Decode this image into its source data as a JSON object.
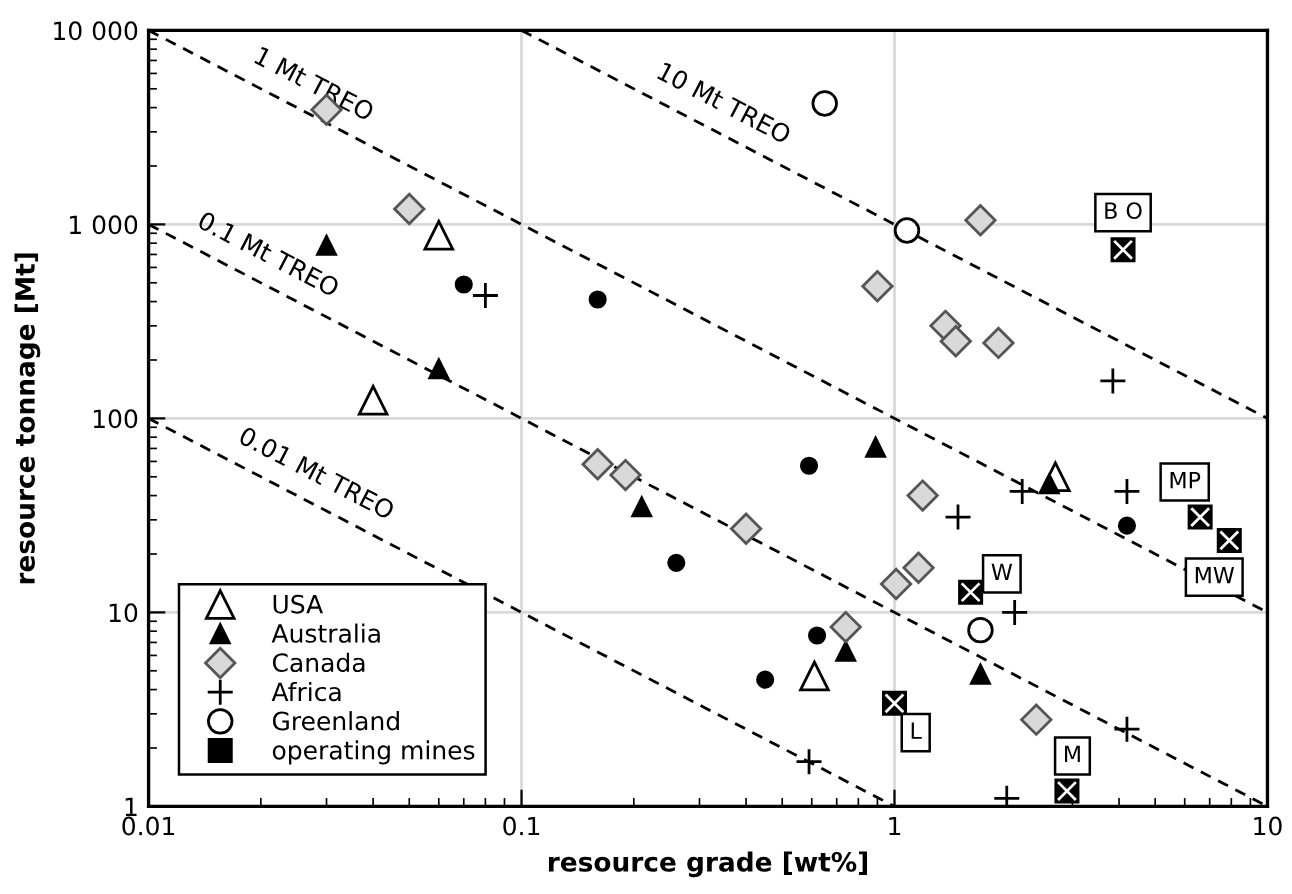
{
  "chart_data": {
    "type": "scatter",
    "xlabel": "resource grade [wt%]",
    "ylabel": "resource tonnage [Mt]",
    "log": "xy",
    "grid": true,
    "legend": "bottom left",
    "xlim": [
      0.01,
      10
    ],
    "xticks": [
      0.01,
      0.1,
      1,
      10
    ],
    "ylim": [
      1,
      10000
    ],
    "yticks": [
      1,
      10,
      100,
      {
        "value": 1000,
        "label": "1 000"
      },
      {
        "value": 10000,
        "label": "10 000"
      }
    ],
    "series": [
      {
        "name": "USA",
        "marker": "triangle",
        "color": "#ffffff",
        "x": [
          0.06,
          0.04,
          2.7,
          0.61
        ],
        "values": [
          880,
          124,
          50,
          4.7
        ]
      },
      {
        "name": "Australia",
        "marker": "triangle",
        "color": "#000000",
        "x": [
          0.03,
          0.06,
          0.89,
          0.21,
          2.6,
          0.74,
          1.7
        ],
        "values": [
          780,
          180,
          71,
          35,
          46,
          6.3,
          4.8
        ]
      },
      {
        "name": "Canada",
        "marker": "diamond",
        "color": "#d9d9d9",
        "x": [
          0.03,
          0.05,
          1.7,
          0.9,
          1.37,
          1.46,
          1.9,
          0.16,
          0.19,
          0.4,
          1.19,
          1.16,
          1.01,
          0.74,
          2.4
        ],
        "values": [
          3900,
          1200,
          1050,
          480,
          300,
          250,
          245,
          58,
          51,
          27,
          40,
          17,
          14,
          8.4,
          2.8
        ]
      },
      {
        "name": "Africa",
        "marker": "cross",
        "color": "#000000",
        "x": [
          0.08,
          3.85,
          2.2,
          4.2,
          1.48,
          2.1,
          4.2,
          0.59,
          2.0
        ],
        "values": [
          430,
          156,
          42,
          42,
          31,
          10,
          2.5,
          1.7,
          1.1
        ]
      },
      {
        "name": "Greenland",
        "marker": "circle",
        "color": "#ffffff",
        "x": [
          0.65,
          1.08,
          1.7
        ],
        "values": [
          4200,
          930,
          8.1
        ]
      },
      {
        "name": "operating mines",
        "marker": "square",
        "color": "#000000",
        "x": [
          4.1,
          6.6,
          7.9,
          1.6,
          1.0,
          2.9
        ],
        "values": [
          740,
          31,
          23.5,
          12.7,
          3.4,
          1.2
        ]
      },
      {
        "marker": "circle",
        "color": "#000000",
        "x": [
          0.07,
          0.16,
          0.59,
          0.26,
          0.62,
          0.45,
          4.2
        ],
        "values": [
          490,
          410,
          57,
          18,
          7.6,
          4.5,
          28
        ]
      },
      {
        "name": "0.01 Mt TREO",
        "type": "line",
        "marker": "none",
        "line_style": "dashed",
        "color": "#000000",
        "x": [
          0.01,
          1
        ],
        "values": [
          100,
          1
        ]
      },
      {
        "name": "0.1 Mt TREO",
        "type": "line",
        "marker": "none",
        "line_style": "dashed",
        "color": "#000000",
        "x": [
          0.01,
          10
        ],
        "values": [
          1000,
          1
        ]
      },
      {
        "name": "1 Mt TREO",
        "type": "line",
        "marker": "none",
        "line_style": "dashed",
        "color": "#000000",
        "x": [
          0.01,
          10
        ],
        "values": [
          10000,
          10
        ]
      },
      {
        "name": "10 Mt TREO",
        "type": "line",
        "marker": "none",
        "line_style": "dashed",
        "color": "#000000",
        "x": [
          0.1,
          10
        ],
        "values": [
          10000,
          100
        ]
      }
    ],
    "annotations": [
      {
        "text": "B O",
        "x": 4.1,
        "y": 1150
      },
      {
        "text": "MP",
        "x": 6.0,
        "y": 47
      },
      {
        "text": "MW",
        "x": 7.2,
        "y": 15.2
      },
      {
        "text": "W",
        "x": 1.94,
        "y": 15.8
      },
      {
        "text": "L",
        "x": 1.14,
        "y": 2.4
      },
      {
        "text": "M",
        "x": 3.0,
        "y": 1.82
      }
    ]
  }
}
